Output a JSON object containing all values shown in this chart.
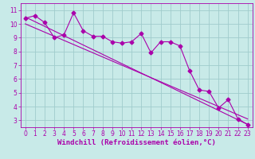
{
  "title": "",
  "xlabel": "Windchill (Refroidissement éolien,°C)",
  "ylabel": "",
  "bg_color": "#c8eae8",
  "grid_color": "#a0cccc",
  "line_color": "#aa00aa",
  "spine_color": "#aa00aa",
  "xlim": [
    -0.5,
    23.5
  ],
  "ylim": [
    2.5,
    11.5
  ],
  "xticks": [
    0,
    1,
    2,
    3,
    4,
    5,
    6,
    7,
    8,
    9,
    10,
    11,
    12,
    13,
    14,
    15,
    16,
    17,
    18,
    19,
    20,
    21,
    22,
    23
  ],
  "yticks": [
    3,
    4,
    5,
    6,
    7,
    8,
    9,
    10,
    11
  ],
  "data_x": [
    0,
    1,
    2,
    3,
    4,
    5,
    6,
    7,
    8,
    9,
    10,
    11,
    12,
    13,
    14,
    15,
    16,
    17,
    18,
    19,
    20,
    21,
    22,
    23
  ],
  "data_y": [
    10.4,
    10.6,
    10.1,
    9.0,
    9.2,
    10.8,
    9.5,
    9.1,
    9.1,
    8.7,
    8.6,
    8.7,
    9.3,
    7.9,
    8.7,
    8.7,
    8.4,
    6.6,
    5.2,
    5.1,
    3.9,
    4.5,
    3.1,
    2.7
  ],
  "line1_x": [
    0,
    23
  ],
  "line1_y": [
    10.5,
    2.7
  ],
  "line2_x": [
    0,
    23
  ],
  "line2_y": [
    10.0,
    3.1
  ],
  "marker_size": 2.5,
  "tick_fontsize": 5.5,
  "label_fontsize": 6.5,
  "lw": 0.8
}
